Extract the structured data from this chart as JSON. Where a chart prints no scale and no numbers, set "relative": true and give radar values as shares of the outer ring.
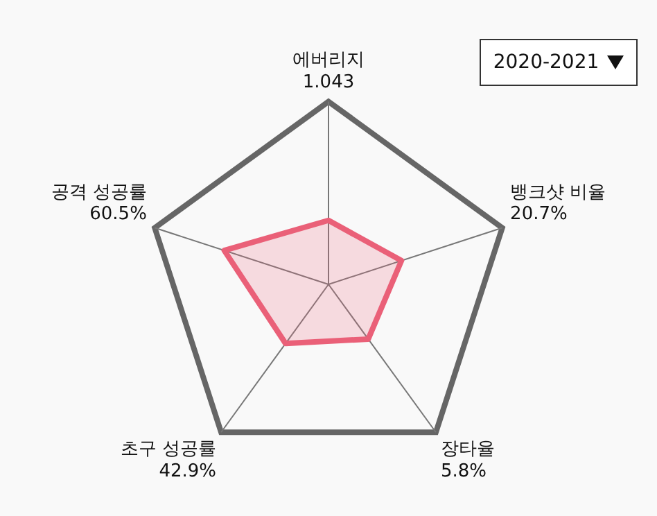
{
  "chart_data": {
    "type": "radar",
    "relative": true,
    "marker": "none",
    "categories": [
      "에버리지",
      "뱅크샷 비율",
      "장타율",
      "초구 성공률",
      "공격 성공률"
    ],
    "value_labels": [
      "1.043",
      "20.7%",
      "5.8%",
      "42.9%",
      "60.5%"
    ],
    "series": [
      {
        "color": "#ea6078",
        "values": [
          0.35,
          0.42,
          0.37,
          0.4,
          0.6
        ]
      }
    ],
    "annotations": [
      "2020-2021"
    ]
  }
}
